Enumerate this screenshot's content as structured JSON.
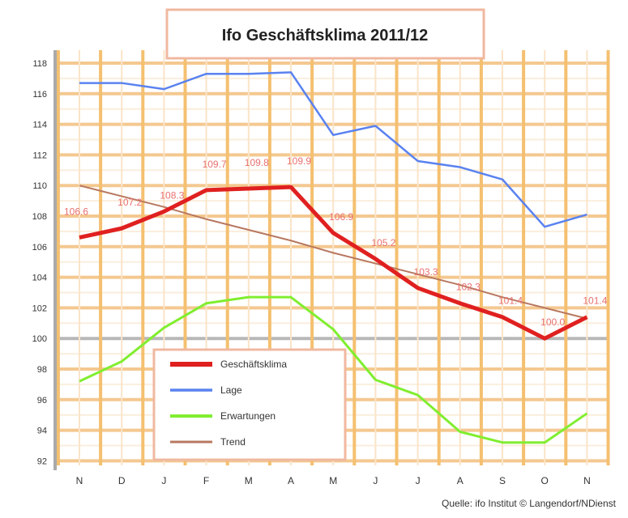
{
  "chart_data": {
    "type": "line",
    "title": "Ifo Geschäftsklima 2011/12",
    "source": "Quelle: ifo Institut © Langendorf/NDienst",
    "categories": [
      "N",
      "D",
      "J",
      "F",
      "M",
      "A",
      "M",
      "J",
      "J",
      "A",
      "S",
      "O",
      "N"
    ],
    "yticks": [
      118,
      116,
      114,
      112,
      110,
      108,
      106,
      104,
      102,
      100,
      98,
      96,
      94,
      92
    ],
    "ylim": [
      92,
      118
    ],
    "grid": true,
    "legend_position": "bottom-left",
    "series": [
      {
        "name": "Geschäftsklima",
        "color": "#e02020",
        "width": 5,
        "values": [
          106.6,
          107.2,
          108.3,
          109.7,
          109.8,
          109.9,
          106.9,
          105.2,
          103.3,
          102.3,
          101.4,
          100.0,
          101.4
        ],
        "labels": [
          "106.6",
          "107.2",
          "108.3",
          "109.7",
          "109.8",
          "109.9",
          "106.9",
          "105.2",
          "103.3",
          "102.3",
          "101.4",
          "100.0",
          "101.4"
        ]
      },
      {
        "name": "Lage",
        "color": "#5a82f0",
        "width": 2.5,
        "values": [
          116.7,
          116.7,
          116.3,
          117.3,
          117.3,
          117.4,
          113.3,
          113.9,
          111.6,
          111.2,
          110.4,
          107.3,
          108.1
        ]
      },
      {
        "name": "Erwartungen",
        "color": "#80ee30",
        "width": 3,
        "values": [
          97.2,
          98.5,
          100.7,
          102.3,
          102.7,
          102.7,
          100.6,
          97.3,
          96.3,
          93.9,
          93.2,
          93.2,
          95.1
        ]
      },
      {
        "name": "Trend",
        "color": "#b87860",
        "width": 2,
        "values": [
          110.0,
          109.3,
          108.6,
          107.8,
          107.1,
          106.4,
          105.6,
          104.9,
          104.2,
          103.5,
          102.7,
          102.0,
          101.3
        ]
      }
    ]
  }
}
